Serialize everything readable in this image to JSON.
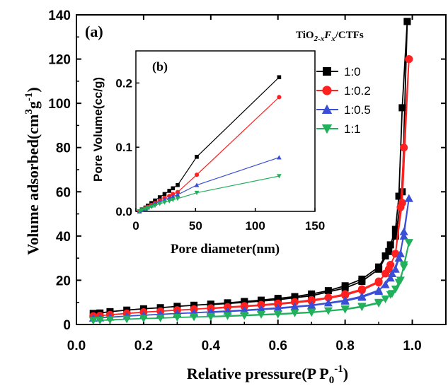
{
  "chart_data": [
    {
      "type": "line",
      "panel_label": "(a)",
      "xlabel": "Relative pressure(P P",
      "xlabel_sub": "0",
      "xlabel_sup": "-1",
      "xlabel_end": ")",
      "ylabel": "Volume adsorbed(cm",
      "ylabel_sup1": "3",
      "ylabel_mid": "g",
      "ylabel_sup2": "-1",
      "ylabel_end": ")",
      "xlim": [
        0.0,
        1.1
      ],
      "ylim": [
        0,
        140
      ],
      "xticks": [
        "0.0",
        "0.2",
        "0.4",
        "0.6",
        "0.8",
        "1.0"
      ],
      "yticks": [
        "0",
        "20",
        "40",
        "60",
        "80",
        "100",
        "120",
        "140"
      ],
      "legend_title": "TiO",
      "legend_title_parts": [
        "TiO",
        "2-x",
        "F",
        "x",
        "/CTFs"
      ],
      "legend_position": "top-right",
      "series": [
        {
          "name": "1:0",
          "color": "#000000",
          "marker": "square",
          "adsorption": [
            [
              0.05,
              5.0
            ],
            [
              0.07,
              5.2
            ],
            [
              0.1,
              5.8
            ],
            [
              0.15,
              6.5
            ],
            [
              0.2,
              7.1
            ],
            [
              0.25,
              7.6
            ],
            [
              0.3,
              8.2
            ],
            [
              0.35,
              8.7
            ],
            [
              0.4,
              9.2
            ],
            [
              0.45,
              9.8
            ],
            [
              0.5,
              10.4
            ],
            [
              0.55,
              11.0
            ],
            [
              0.6,
              11.8
            ],
            [
              0.65,
              12.6
            ],
            [
              0.7,
              13.8
            ],
            [
              0.75,
              15.3
            ],
            [
              0.8,
              17.5
            ],
            [
              0.85,
              20.5
            ],
            [
              0.9,
              26.0
            ],
            [
              0.92,
              31.0
            ],
            [
              0.935,
              36.0
            ],
            [
              0.95,
              43.0
            ],
            [
              0.96,
              58.0
            ],
            [
              0.97,
              98.0
            ],
            [
              0.985,
              137.0
            ]
          ],
          "desorption": [
            [
              0.985,
              137.0
            ],
            [
              0.97,
              60.0
            ],
            [
              0.95,
              40.0
            ],
            [
              0.93,
              33.0
            ],
            [
              0.9,
              25.0
            ],
            [
              0.85,
              19.5
            ],
            [
              0.8,
              16.5
            ],
            [
              0.7,
              13.0
            ],
            [
              0.6,
              11.2
            ],
            [
              0.5,
              10.0
            ],
            [
              0.4,
              9.0
            ]
          ]
        },
        {
          "name": "1:0.2",
          "color": "#ff2020",
          "marker": "circle",
          "adsorption": [
            [
              0.05,
              3.8
            ],
            [
              0.07,
              4.0
            ],
            [
              0.1,
              4.4
            ],
            [
              0.15,
              5.0
            ],
            [
              0.2,
              5.6
            ],
            [
              0.25,
              6.0
            ],
            [
              0.3,
              6.5
            ],
            [
              0.35,
              6.9
            ],
            [
              0.4,
              7.4
            ],
            [
              0.45,
              7.9
            ],
            [
              0.5,
              8.4
            ],
            [
              0.55,
              8.9
            ],
            [
              0.6,
              9.5
            ],
            [
              0.65,
              10.2
            ],
            [
              0.7,
              11.1
            ],
            [
              0.75,
              12.2
            ],
            [
              0.8,
              13.8
            ],
            [
              0.85,
              16.0
            ],
            [
              0.9,
              19.5
            ],
            [
              0.92,
              23.0
            ],
            [
              0.935,
              27.0
            ],
            [
              0.95,
              32.0
            ],
            [
              0.965,
              53.0
            ],
            [
              0.975,
              80.0
            ],
            [
              0.99,
              120.0
            ]
          ],
          "desorption": [
            [
              0.99,
              120.0
            ],
            [
              0.97,
              55.0
            ],
            [
              0.95,
              32.0
            ],
            [
              0.93,
              25.0
            ],
            [
              0.9,
              19.0
            ],
            [
              0.85,
              15.5
            ],
            [
              0.8,
              13.2
            ],
            [
              0.7,
              10.6
            ],
            [
              0.6,
              9.1
            ],
            [
              0.5,
              8.1
            ],
            [
              0.4,
              7.2
            ]
          ]
        },
        {
          "name": "1:0.5",
          "color": "#3a4fd6",
          "marker": "triangle-up",
          "adsorption": [
            [
              0.05,
              2.9
            ],
            [
              0.07,
              3.0
            ],
            [
              0.1,
              3.3
            ],
            [
              0.15,
              3.8
            ],
            [
              0.2,
              4.2
            ],
            [
              0.25,
              4.6
            ],
            [
              0.3,
              5.0
            ],
            [
              0.35,
              5.3
            ],
            [
              0.4,
              5.7
            ],
            [
              0.45,
              6.1
            ],
            [
              0.5,
              6.5
            ],
            [
              0.55,
              7.0
            ],
            [
              0.6,
              7.5
            ],
            [
              0.65,
              8.1
            ],
            [
              0.7,
              8.8
            ],
            [
              0.75,
              9.8
            ],
            [
              0.8,
              11.0
            ],
            [
              0.85,
              12.8
            ],
            [
              0.9,
              15.5
            ],
            [
              0.92,
              18.0
            ],
            [
              0.935,
              21.0
            ],
            [
              0.95,
              25.0
            ],
            [
              0.965,
              32.0
            ],
            [
              0.975,
              42.0
            ],
            [
              0.99,
              57.0
            ]
          ],
          "desorption": [
            [
              0.99,
              57.0
            ],
            [
              0.975,
              40.0
            ],
            [
              0.96,
              30.0
            ],
            [
              0.94,
              23.0
            ],
            [
              0.9,
              15.0
            ],
            [
              0.85,
              12.3
            ],
            [
              0.8,
              10.6
            ],
            [
              0.7,
              8.5
            ],
            [
              0.6,
              7.2
            ],
            [
              0.5,
              6.3
            ],
            [
              0.4,
              5.5
            ]
          ]
        },
        {
          "name": "1:1",
          "color": "#22b05c",
          "marker": "triangle-down",
          "adsorption": [
            [
              0.05,
              1.8
            ],
            [
              0.07,
              1.9
            ],
            [
              0.1,
              2.1
            ],
            [
              0.15,
              2.4
            ],
            [
              0.2,
              2.7
            ],
            [
              0.25,
              2.9
            ],
            [
              0.3,
              3.2
            ],
            [
              0.35,
              3.4
            ],
            [
              0.4,
              3.6
            ],
            [
              0.45,
              3.9
            ],
            [
              0.5,
              4.2
            ],
            [
              0.55,
              4.5
            ],
            [
              0.6,
              4.8
            ],
            [
              0.65,
              5.2
            ],
            [
              0.7,
              5.6
            ],
            [
              0.75,
              6.2
            ],
            [
              0.8,
              7.0
            ],
            [
              0.85,
              8.2
            ],
            [
              0.9,
              10.0
            ],
            [
              0.92,
              11.5
            ],
            [
              0.935,
              13.5
            ],
            [
              0.95,
              16.0
            ],
            [
              0.965,
              20.0
            ],
            [
              0.975,
              27.0
            ],
            [
              0.99,
              37.0
            ]
          ],
          "desorption": [
            [
              0.99,
              37.0
            ],
            [
              0.975,
              26.0
            ],
            [
              0.96,
              19.0
            ],
            [
              0.94,
              14.0
            ],
            [
              0.9,
              9.6
            ],
            [
              0.85,
              7.9
            ],
            [
              0.8,
              6.8
            ],
            [
              0.7,
              5.4
            ],
            [
              0.6,
              4.6
            ],
            [
              0.5,
              4.0
            ],
            [
              0.4,
              3.5
            ]
          ]
        }
      ]
    },
    {
      "type": "line",
      "panel_label": "(b)",
      "xlabel": "Pore diameter(nm)",
      "ylabel": "Pore Volume(cc/g)",
      "xlim": [
        0,
        150
      ],
      "ylim": [
        0,
        0.25
      ],
      "xticks": [
        "0",
        "50",
        "100",
        "150"
      ],
      "yticks": [
        "0.0",
        "0.1",
        "0.2"
      ],
      "series": [
        {
          "name": "1:0",
          "color": "#000000",
          "marker": "square",
          "points": [
            [
              3,
              0.0
            ],
            [
              5,
              0.003
            ],
            [
              8,
              0.006
            ],
            [
              10,
              0.009
            ],
            [
              13,
              0.013
            ],
            [
              16,
              0.017
            ],
            [
              20,
              0.022
            ],
            [
              24,
              0.027
            ],
            [
              28,
              0.032
            ],
            [
              31,
              0.036
            ],
            [
              35,
              0.041
            ],
            [
              51,
              0.085
            ],
            [
              120,
              0.209
            ]
          ]
        },
        {
          "name": "1:0.2",
          "color": "#ff2020",
          "marker": "circle",
          "points": [
            [
              3,
              0.0
            ],
            [
              5,
              0.002
            ],
            [
              8,
              0.005
            ],
            [
              10,
              0.007
            ],
            [
              13,
              0.01
            ],
            [
              16,
              0.013
            ],
            [
              20,
              0.017
            ],
            [
              24,
              0.021
            ],
            [
              28,
              0.024
            ],
            [
              31,
              0.027
            ],
            [
              35,
              0.03
            ],
            [
              51,
              0.057
            ],
            [
              120,
              0.178
            ]
          ]
        },
        {
          "name": "1:0.5",
          "color": "#3a4fd6",
          "marker": "triangle-up",
          "points": [
            [
              3,
              0.0
            ],
            [
              5,
              0.002
            ],
            [
              8,
              0.004
            ],
            [
              10,
              0.006
            ],
            [
              13,
              0.009
            ],
            [
              16,
              0.012
            ],
            [
              20,
              0.015
            ],
            [
              24,
              0.018
            ],
            [
              28,
              0.021
            ],
            [
              31,
              0.023
            ],
            [
              35,
              0.026
            ],
            [
              51,
              0.041
            ],
            [
              120,
              0.084
            ]
          ]
        },
        {
          "name": "1:1",
          "color": "#22b05c",
          "marker": "triangle-down",
          "points": [
            [
              3,
              0.0
            ],
            [
              5,
              0.002
            ],
            [
              8,
              0.004
            ],
            [
              10,
              0.005
            ],
            [
              13,
              0.007
            ],
            [
              16,
              0.009
            ],
            [
              20,
              0.012
            ],
            [
              24,
              0.014
            ],
            [
              28,
              0.016
            ],
            [
              31,
              0.018
            ],
            [
              35,
              0.02
            ],
            [
              51,
              0.029
            ],
            [
              120,
              0.055
            ]
          ]
        }
      ]
    }
  ]
}
